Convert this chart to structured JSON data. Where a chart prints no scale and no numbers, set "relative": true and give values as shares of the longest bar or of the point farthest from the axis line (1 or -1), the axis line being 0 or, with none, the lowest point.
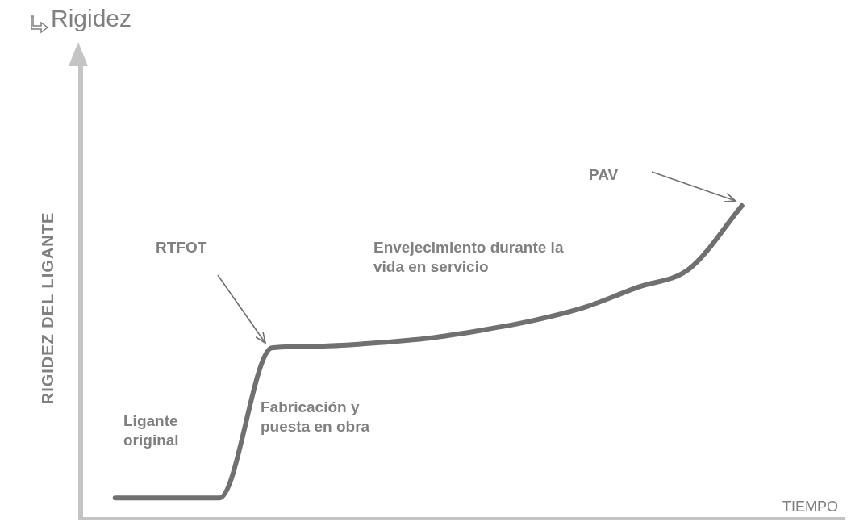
{
  "chart_data": {
    "type": "line",
    "title": "Rigidez",
    "ylabel": "RIGIDEZ DEL LIGANTE",
    "xlabel": "TIEMPO",
    "relative": true,
    "categories": [
      null,
      null,
      null,
      null,
      null,
      null,
      null,
      null,
      null,
      null,
      null,
      null,
      null
    ],
    "series": [
      {
        "color": "#707070",
        "values": [
          0.069,
          0.069,
          0.069,
          0.547,
          0.553,
          0.563,
          0.578,
          0.603,
          0.634,
          0.677,
          0.74,
          0.8,
          1
        ]
      }
    ],
    "annotations": [
      "Ligante original",
      "Fabricación y puesta en obra",
      "RTFOT",
      "Envejecimiento durante la vida en servicio",
      "PAV"
    ]
  }
}
